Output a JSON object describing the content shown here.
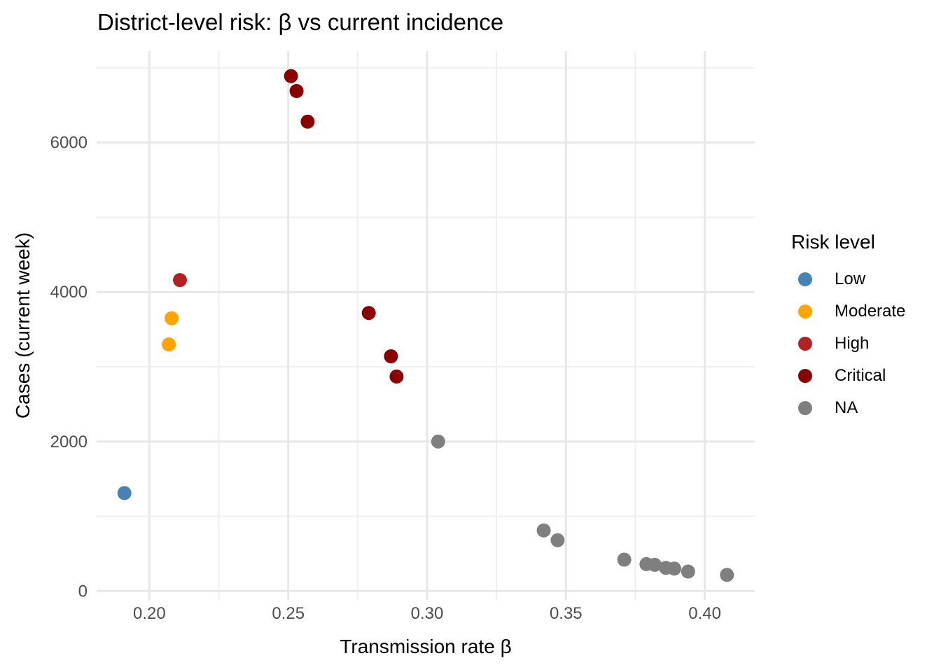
{
  "chart_data": {
    "type": "scatter",
    "title": "District-level risk: β vs current incidence",
    "xlabel": "Transmission rate β",
    "ylabel": "Cases (current week)",
    "legend_title": "Risk level",
    "legend_position": "right",
    "grid": "major and minor, no axis lines, no ticks (minimal theme)",
    "xlim": [
      0.181,
      0.418
    ],
    "ylim": [
      -119,
      7224
    ],
    "x_ticks": {
      "values": [
        0.2,
        0.25,
        0.3,
        0.35,
        0.4
      ],
      "labels": [
        "0.20",
        "0.25",
        "0.30",
        "0.35",
        "0.40"
      ]
    },
    "x_minor_ticks": [
      0.225,
      0.275,
      0.325,
      0.375
    ],
    "y_ticks": {
      "values": [
        0,
        2000,
        4000,
        6000
      ],
      "labels": [
        "0",
        "2000",
        "4000",
        "6000"
      ]
    },
    "y_minor_ticks": [
      1000,
      3000,
      5000,
      7000
    ],
    "series": [
      {
        "name": "Low",
        "color": "#4682B4",
        "points": [
          [
            0.191,
            1310
          ]
        ]
      },
      {
        "name": "Moderate",
        "color": "#FFA500",
        "points": [
          [
            0.207,
            3300
          ],
          [
            0.208,
            3650
          ]
        ]
      },
      {
        "name": "High",
        "color": "#B22222",
        "points": [
          [
            0.211,
            4160
          ]
        ]
      },
      {
        "name": "Critical",
        "color": "#8B0000",
        "points": [
          [
            0.251,
            6890
          ],
          [
            0.253,
            6690
          ],
          [
            0.257,
            6280
          ],
          [
            0.279,
            3720
          ],
          [
            0.287,
            3140
          ],
          [
            0.289,
            2870
          ]
        ]
      },
      {
        "name": "NA",
        "color": "#7F7F7F",
        "points": [
          [
            0.304,
            2000
          ],
          [
            0.342,
            810
          ],
          [
            0.347,
            680
          ],
          [
            0.371,
            420
          ],
          [
            0.379,
            360
          ],
          [
            0.382,
            350
          ],
          [
            0.386,
            310
          ],
          [
            0.389,
            300
          ],
          [
            0.394,
            260
          ],
          [
            0.408,
            215
          ]
        ]
      }
    ]
  },
  "colors": {
    "grid_major": "#E7E7E7",
    "grid_minor": "#EFEFEF",
    "tick_label": "#4D4D4D",
    "title_text": "#000000",
    "background": "#FFFFFF"
  }
}
